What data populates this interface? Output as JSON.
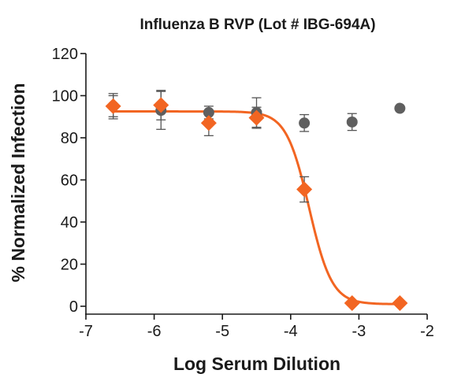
{
  "chart_data": {
    "type": "scatter",
    "title": "Influenza B RVP (Lot # IBG-694A)",
    "xlabel": "Log Serum Dilution",
    "ylabel": "% Normalized Infection",
    "xlim": [
      -7,
      -2
    ],
    "ylim": [
      0,
      120
    ],
    "x_ticks": [
      -7,
      -6,
      -5,
      -4,
      -3,
      -2
    ],
    "y_ticks": [
      0,
      20,
      40,
      60,
      80,
      100,
      120
    ],
    "x_tick_labels": [
      "-7",
      "-6",
      "-5",
      "-4",
      "-3",
      "-2"
    ],
    "y_tick_labels": [
      "0",
      "20",
      "40",
      "60",
      "80",
      "100",
      "120"
    ],
    "grid": false,
    "series": [
      {
        "marker": "circle",
        "color": "#5f5f5f",
        "points": [
          {
            "x": -6.6,
            "y": 95,
            "err": 5
          },
          {
            "x": -5.9,
            "y": 93,
            "err": 9
          },
          {
            "x": -5.2,
            "y": 92,
            "err": 3
          },
          {
            "x": -4.5,
            "y": 92,
            "err": 7
          },
          {
            "x": -3.8,
            "y": 87,
            "err": 4
          },
          {
            "x": -3.1,
            "y": 87.5,
            "err": 4
          },
          {
            "x": -2.4,
            "y": 94,
            "err": 0
          }
        ]
      },
      {
        "marker": "diamond",
        "color": "#f26522",
        "points": [
          {
            "x": -6.6,
            "y": 95,
            "err": 6
          },
          {
            "x": -5.9,
            "y": 95.5,
            "err": 7
          },
          {
            "x": -5.2,
            "y": 87,
            "err": 6
          },
          {
            "x": -4.5,
            "y": 89.5,
            "err": 5
          },
          {
            "x": -3.8,
            "y": 55.5,
            "err": 6
          },
          {
            "x": -3.1,
            "y": 1.5,
            "err": 0
          },
          {
            "x": -2.4,
            "y": 1.5,
            "err": 0
          }
        ],
        "fit": {
          "top": 92.5,
          "bottom": 1,
          "log_ic50": -3.73,
          "hill_slope": -2.6
        }
      }
    ]
  }
}
